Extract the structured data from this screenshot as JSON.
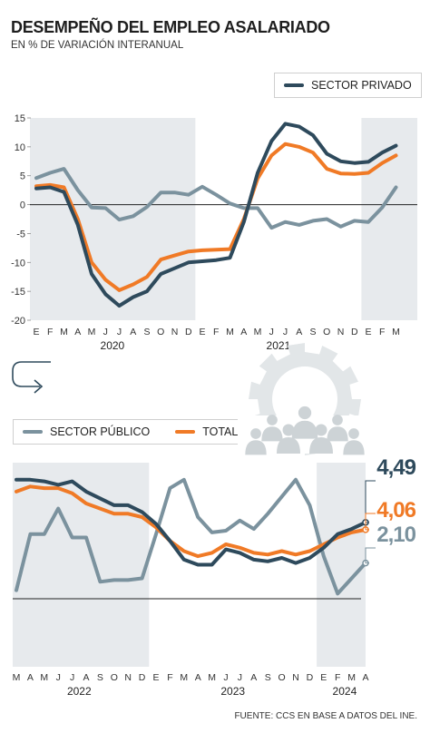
{
  "header": {
    "title": "DESEMPEÑO DEL EMPLEO ASALARIADO",
    "subtitle": "EN % DE VARIACIÓN INTERANUAL"
  },
  "legend": {
    "private": "SECTOR PRIVADO",
    "public": "SECTOR PÚBLICO",
    "total": "TOTAL"
  },
  "colors": {
    "private": "#2e4a5c",
    "public": "#7b929e",
    "total": "#f07a26",
    "band": "#e7eaed"
  },
  "end_labels": {
    "private": "4,49",
    "total": "4,06",
    "public": "2,10"
  },
  "source": "FUENTE: CCS EN BASE A DATOS DEL INE.",
  "chart_data": [
    {
      "type": "line",
      "ylim": [
        -20,
        15
      ],
      "yticks": [
        "15",
        "10",
        "5",
        "0",
        "-5",
        "-10",
        "-15",
        "-20"
      ],
      "months": [
        "E",
        "F",
        "M",
        "A",
        "M",
        "J",
        "J",
        "A",
        "S",
        "O",
        "N",
        "D",
        "E",
        "F",
        "M",
        "A",
        "M",
        "J",
        "J",
        "A",
        "S",
        "O",
        "N",
        "D",
        "E",
        "F",
        "M"
      ],
      "years": [
        "2020",
        "2021"
      ],
      "series": [
        {
          "name": "SECTOR PRIVADO",
          "values": [
            2.8,
            3.0,
            2.2,
            -3.5,
            -12.0,
            -15.5,
            -17.5,
            -16.0,
            -15.0,
            -12.0,
            -11.0,
            -10.0,
            -9.8,
            -9.6,
            -9.2,
            -3.0,
            5.5,
            11.0,
            14.0,
            13.5,
            12.0,
            8.8,
            7.5,
            7.2,
            7.4,
            9.0,
            10.2
          ]
        },
        {
          "name": "TOTAL",
          "values": [
            3.2,
            3.4,
            3.0,
            -2.5,
            -10.0,
            -13.0,
            -14.8,
            -13.8,
            -12.5,
            -9.5,
            -8.8,
            -8.1,
            -7.9,
            -7.8,
            -7.7,
            -2.5,
            4.5,
            8.5,
            10.5,
            10.0,
            9.0,
            6.2,
            5.4,
            5.3,
            5.5,
            7.2,
            8.5
          ]
        },
        {
          "name": "SECTOR PÚBLICO",
          "values": [
            4.6,
            5.5,
            6.2,
            2.5,
            -0.5,
            -0.6,
            -2.6,
            -2.0,
            -0.4,
            2.1,
            2.1,
            1.7,
            3.1,
            1.7,
            0.2,
            -0.6,
            -0.6,
            -4.0,
            -3.0,
            -3.5,
            -2.8,
            -2.5,
            -3.8,
            -2.8,
            -3.0,
            -0.5,
            3.0
          ]
        }
      ]
    },
    {
      "type": "line",
      "ylim": [
        -4,
        8
      ],
      "months": [
        "M",
        "A",
        "M",
        "J",
        "J",
        "A",
        "S",
        "O",
        "N",
        "D",
        "E",
        "F",
        "M",
        "A",
        "M",
        "J",
        "J",
        "A",
        "S",
        "O",
        "N",
        "D",
        "E",
        "F",
        "M",
        "A"
      ],
      "years": [
        "2022",
        "2023",
        "2024"
      ],
      "series": [
        {
          "name": "SECTOR PRIVADO",
          "values": [
            7.0,
            7.0,
            6.9,
            6.7,
            6.9,
            6.3,
            5.9,
            5.5,
            5.5,
            5.1,
            4.4,
            3.4,
            2.3,
            2.0,
            2.0,
            2.9,
            2.7,
            2.3,
            2.2,
            2.4,
            2.1,
            2.4,
            3.0,
            3.8,
            4.1,
            4.49
          ]
        },
        {
          "name": "TOTAL",
          "values": [
            6.3,
            6.6,
            6.5,
            6.5,
            6.2,
            5.6,
            5.3,
            5.0,
            5.0,
            4.8,
            4.2,
            3.4,
            2.8,
            2.5,
            2.7,
            3.2,
            3.0,
            2.7,
            2.6,
            2.8,
            2.6,
            2.8,
            3.2,
            3.6,
            3.9,
            4.06
          ]
        },
        {
          "name": "SECTOR PÚBLICO",
          "values": [
            0.5,
            3.8,
            3.8,
            5.3,
            3.6,
            3.6,
            1.0,
            1.1,
            1.1,
            1.2,
            3.8,
            6.5,
            7.0,
            4.8,
            3.9,
            4.0,
            4.6,
            4.1,
            5.0,
            6.0,
            7.0,
            5.5,
            2.5,
            0.3,
            1.2,
            2.1
          ]
        }
      ]
    }
  ]
}
